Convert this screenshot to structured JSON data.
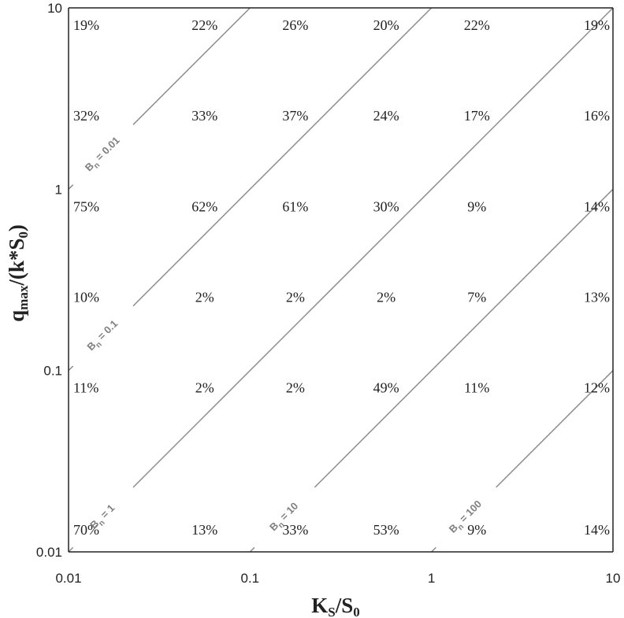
{
  "chart_data": {
    "type": "heatmap",
    "x_scale": "log",
    "y_scale": "log",
    "xlim": [
      0.01,
      10
    ],
    "ylim": [
      0.01,
      10
    ],
    "x_ticks": [
      "0.01",
      "0.1",
      "1",
      "10"
    ],
    "y_ticks": [
      "0.01",
      "0.1",
      "1",
      "10"
    ],
    "xlabel": {
      "main": "K",
      "sub1": "S",
      "mid": "/S",
      "sub2": "0"
    },
    "ylabel": {
      "main": "q",
      "sub1": "max",
      "mid": "/(k*S",
      "sub2": "0",
      "end": ")"
    },
    "grid": false,
    "line_color": "#8c8c8c",
    "columns": 6,
    "rows": [
      [
        "19%",
        "22%",
        "26%",
        "20%",
        "22%",
        "19%"
      ],
      [
        "32%",
        "33%",
        "37%",
        "24%",
        "17%",
        "16%"
      ],
      [
        "75%",
        "62%",
        "61%",
        "30%",
        "9%",
        "14%"
      ],
      [
        "10%",
        "2%",
        "2%",
        "2%",
        "7%",
        "13%"
      ],
      [
        "11%",
        "2%",
        "2%",
        "49%",
        "11%",
        "12%"
      ],
      [
        "70%",
        "13%",
        "33%",
        "53%",
        "9%",
        "14%"
      ]
    ],
    "contours": [
      {
        "label_main": "B",
        "label_sub": "n",
        "label_value": " = 0.01",
        "value": 0.01
      },
      {
        "label_main": "B",
        "label_sub": "n",
        "label_value": " = 0.1",
        "value": 0.1
      },
      {
        "label_main": "B",
        "label_sub": "n",
        "label_value": " = 1",
        "value": 1
      },
      {
        "label_main": "B",
        "label_sub": "n",
        "label_value": " = 10",
        "value": 10
      },
      {
        "label_main": "B",
        "label_sub": "n",
        "label_value": " = 100",
        "value": 100
      }
    ]
  }
}
